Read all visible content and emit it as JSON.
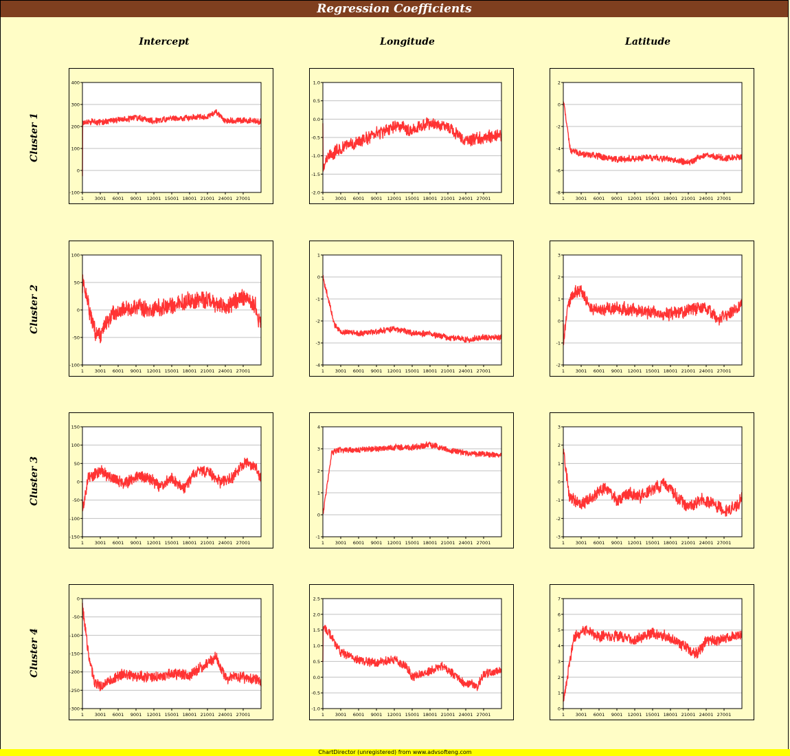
{
  "title": "Regression Coefficients",
  "columns": [
    "Intercept",
    "Longitude",
    "Latitude"
  ],
  "rows": [
    "Cluster 1",
    "Cluster 2",
    "Cluster 3",
    "Cluster 4"
  ],
  "footer": "ChartDirector (unregistered) from www.advsofteng.com",
  "line_color": "#ff3333",
  "chart_data": [
    {
      "type": "line",
      "row": "Cluster 1",
      "column": "Intercept",
      "ylim": [
        -100,
        400
      ],
      "yticks": [
        "400",
        "300",
        "200",
        "100",
        "0",
        "-100"
      ],
      "x_ticks": [
        "1",
        "3001",
        "6001",
        "9001",
        "12001",
        "15001",
        "18001",
        "21001",
        "24001",
        "27001"
      ],
      "xlim": [
        1,
        30000
      ],
      "start": -30,
      "level": [
        [
          0,
          220
        ],
        [
          3000,
          220
        ],
        [
          6000,
          230
        ],
        [
          9000,
          240
        ],
        [
          12000,
          225
        ],
        [
          15000,
          235
        ],
        [
          18000,
          240
        ],
        [
          21000,
          245
        ],
        [
          22500,
          265
        ],
        [
          24000,
          225
        ],
        [
          27000,
          225
        ],
        [
          30000,
          225
        ]
      ],
      "noise": [
        -12,
        12
      ]
    },
    {
      "type": "line",
      "row": "Cluster 1",
      "column": "Longitude",
      "ylim": [
        -2.0,
        1.0
      ],
      "yticks": [
        "1.0",
        "0.5",
        "0.0",
        "-0.5",
        "-1.0",
        "-1.5",
        "-2.0"
      ],
      "x_ticks": [
        "1",
        "3001",
        "6001",
        "9001",
        "12001",
        "15001",
        "18001",
        "21001",
        "24001",
        "27001"
      ],
      "xlim": [
        1,
        30000
      ],
      "start": 0.0,
      "level": [
        [
          0,
          -1.3
        ],
        [
          1000,
          -1.0
        ],
        [
          3000,
          -0.8
        ],
        [
          6000,
          -0.6
        ],
        [
          9000,
          -0.4
        ],
        [
          12000,
          -0.2
        ],
        [
          15000,
          -0.3
        ],
        [
          18000,
          -0.1
        ],
        [
          21000,
          -0.2
        ],
        [
          24000,
          -0.6
        ],
        [
          27000,
          -0.5
        ],
        [
          30000,
          -0.4
        ]
      ],
      "noise": [
        -0.15,
        0.15
      ]
    },
    {
      "type": "line",
      "row": "Cluster 1",
      "column": "Latitude",
      "ylim": [
        -8,
        2
      ],
      "yticks": [
        "2",
        "0",
        "-2",
        "-4",
        "-6",
        "-8"
      ],
      "x_ticks": [
        "1",
        "3001",
        "6001",
        "9001",
        "12001",
        "15001",
        "18001",
        "21001",
        "24001",
        "27001"
      ],
      "xlim": [
        1,
        30000
      ],
      "start": 0.5,
      "level": [
        [
          0,
          0.5
        ],
        [
          1200,
          -4.2
        ],
        [
          3000,
          -4.5
        ],
        [
          6000,
          -4.7
        ],
        [
          9000,
          -5.0
        ],
        [
          12000,
          -4.9
        ],
        [
          15000,
          -4.8
        ],
        [
          18000,
          -5.0
        ],
        [
          21000,
          -5.3
        ],
        [
          24000,
          -4.6
        ],
        [
          27000,
          -4.9
        ],
        [
          30000,
          -4.8
        ]
      ],
      "noise": [
        -0.25,
        0.25
      ]
    },
    {
      "type": "line",
      "row": "Cluster 2",
      "column": "Intercept",
      "ylim": [
        -100,
        100
      ],
      "yticks": [
        "100",
        "50",
        "0",
        "-50",
        "-100"
      ],
      "x_ticks": [
        "1",
        "3001",
        "6001",
        "9001",
        "12001",
        "15001",
        "18001",
        "21001",
        "24001",
        "27001"
      ],
      "xlim": [
        1,
        30000
      ],
      "start": 30,
      "level": [
        [
          0,
          55
        ],
        [
          2000,
          -40
        ],
        [
          3000,
          -50
        ],
        [
          4000,
          -20
        ],
        [
          6000,
          0
        ],
        [
          9000,
          5
        ],
        [
          12000,
          0
        ],
        [
          15000,
          10
        ],
        [
          18000,
          15
        ],
        [
          21000,
          20
        ],
        [
          24000,
          5
        ],
        [
          27000,
          25
        ],
        [
          29000,
          10
        ],
        [
          30000,
          -30
        ]
      ],
      "noise": [
        -14,
        14
      ]
    },
    {
      "type": "line",
      "row": "Cluster 2",
      "column": "Longitude",
      "ylim": [
        -4,
        1
      ],
      "yticks": [
        "1",
        "0",
        "-1",
        "-2",
        "-3",
        "-4"
      ],
      "x_ticks": [
        "1",
        "3001",
        "6001",
        "9001",
        "12001",
        "15001",
        "18001",
        "21001",
        "24001",
        "27001"
      ],
      "xlim": [
        1,
        30000
      ],
      "start": 0.0,
      "level": [
        [
          0,
          0.0
        ],
        [
          2000,
          -2.2
        ],
        [
          3000,
          -2.45
        ],
        [
          6000,
          -2.55
        ],
        [
          9000,
          -2.5
        ],
        [
          12000,
          -2.35
        ],
        [
          15000,
          -2.55
        ],
        [
          18000,
          -2.6
        ],
        [
          21000,
          -2.75
        ],
        [
          24000,
          -2.85
        ],
        [
          27000,
          -2.75
        ],
        [
          30000,
          -2.75
        ]
      ],
      "noise": [
        -0.12,
        0.12
      ]
    },
    {
      "type": "line",
      "row": "Cluster 2",
      "column": "Latitude",
      "ylim": [
        -2,
        3
      ],
      "yticks": [
        "3",
        "2",
        "1",
        "0",
        "-1",
        "-2"
      ],
      "x_ticks": [
        "1",
        "3001",
        "6001",
        "9001",
        "12001",
        "15001",
        "18001",
        "21001",
        "24001",
        "27001"
      ],
      "xlim": [
        1,
        30000
      ],
      "start": 0.0,
      "level": [
        [
          0,
          -1.0
        ],
        [
          700,
          0.5
        ],
        [
          1500,
          1.2
        ],
        [
          3000,
          1.4
        ],
        [
          4500,
          0.6
        ],
        [
          6000,
          0.5
        ],
        [
          9000,
          0.6
        ],
        [
          12000,
          0.5
        ],
        [
          15000,
          0.4
        ],
        [
          18000,
          0.3
        ],
        [
          21000,
          0.5
        ],
        [
          24000,
          0.6
        ],
        [
          26000,
          0.1
        ],
        [
          28000,
          0.3
        ],
        [
          30000,
          0.8
        ]
      ],
      "noise": [
        -0.25,
        0.25
      ]
    },
    {
      "type": "line",
      "row": "Cluster 3",
      "column": "Intercept",
      "ylim": [
        -150,
        150
      ],
      "yticks": [
        "150",
        "100",
        "50",
        "0",
        "-50",
        "-100",
        "-150"
      ],
      "x_ticks": [
        "1",
        "3001",
        "6001",
        "9001",
        "12001",
        "15001",
        "18001",
        "21001",
        "24001",
        "27001"
      ],
      "xlim": [
        1,
        30000
      ],
      "start": -60,
      "level": [
        [
          0,
          -80
        ],
        [
          1000,
          10
        ],
        [
          3000,
          30
        ],
        [
          5000,
          10
        ],
        [
          7000,
          -5
        ],
        [
          9000,
          15
        ],
        [
          11000,
          10
        ],
        [
          13000,
          -10
        ],
        [
          15000,
          10
        ],
        [
          17000,
          -20
        ],
        [
          19000,
          25
        ],
        [
          21000,
          30
        ],
        [
          23000,
          0
        ],
        [
          25000,
          10
        ],
        [
          27000,
          50
        ],
        [
          29000,
          40
        ],
        [
          30000,
          10
        ]
      ],
      "noise": [
        -14,
        14
      ]
    },
    {
      "type": "line",
      "row": "Cluster 3",
      "column": "Longitude",
      "ylim": [
        -1,
        4
      ],
      "yticks": [
        "4",
        "3",
        "2",
        "1",
        "0",
        "-1"
      ],
      "x_ticks": [
        "1",
        "3001",
        "6001",
        "9001",
        "12001",
        "15001",
        "18001",
        "21001",
        "24001",
        "27001"
      ],
      "xlim": [
        1,
        30000
      ],
      "start": 0.0,
      "level": [
        [
          0,
          0.0
        ],
        [
          1500,
          2.8
        ],
        [
          3000,
          2.95
        ],
        [
          6000,
          2.95
        ],
        [
          9000,
          3.0
        ],
        [
          12000,
          3.05
        ],
        [
          15000,
          3.05
        ],
        [
          18000,
          3.2
        ],
        [
          21000,
          2.95
        ],
        [
          24000,
          2.8
        ],
        [
          27000,
          2.75
        ],
        [
          30000,
          2.7
        ]
      ],
      "noise": [
        -0.12,
        0.12
      ]
    },
    {
      "type": "line",
      "row": "Cluster 3",
      "column": "Latitude",
      "ylim": [
        -3,
        3
      ],
      "yticks": [
        "3",
        "2",
        "1",
        "0",
        "-1",
        "-2",
        "-3"
      ],
      "x_ticks": [
        "1",
        "3001",
        "6001",
        "9001",
        "12001",
        "15001",
        "18001",
        "21001",
        "24001",
        "27001"
      ],
      "xlim": [
        1,
        30000
      ],
      "start": 1.5,
      "level": [
        [
          0,
          1.8
        ],
        [
          1000,
          -0.8
        ],
        [
          3000,
          -1.2
        ],
        [
          5000,
          -0.8
        ],
        [
          7000,
          -0.3
        ],
        [
          9000,
          -1.0
        ],
        [
          11000,
          -0.6
        ],
        [
          13000,
          -0.8
        ],
        [
          15000,
          -0.4
        ],
        [
          17000,
          -0.1
        ],
        [
          19000,
          -0.8
        ],
        [
          21000,
          -1.4
        ],
        [
          23000,
          -1.0
        ],
        [
          25000,
          -1.1
        ],
        [
          27000,
          -1.6
        ],
        [
          29000,
          -1.4
        ],
        [
          30000,
          -0.9
        ]
      ],
      "noise": [
        -0.3,
        0.3
      ]
    },
    {
      "type": "line",
      "row": "Cluster 4",
      "column": "Intercept",
      "ylim": [
        -300,
        0
      ],
      "yticks": [
        "0",
        "-50",
        "-100",
        "-150",
        "-200",
        "-250",
        "-300"
      ],
      "x_ticks": [
        "1",
        "3001",
        "6001",
        "9001",
        "12001",
        "15001",
        "18001",
        "21001",
        "24001",
        "27001"
      ],
      "xlim": [
        1,
        30000
      ],
      "start": -10,
      "level": [
        [
          0,
          -20
        ],
        [
          1200,
          -170
        ],
        [
          2000,
          -225
        ],
        [
          3000,
          -240
        ],
        [
          6000,
          -210
        ],
        [
          9000,
          -210
        ],
        [
          12000,
          -215
        ],
        [
          15000,
          -205
        ],
        [
          18000,
          -210
        ],
        [
          21000,
          -175
        ],
        [
          22500,
          -160
        ],
        [
          24000,
          -215
        ],
        [
          27000,
          -215
        ],
        [
          30000,
          -225
        ]
      ],
      "noise": [
        -13,
        13
      ]
    },
    {
      "type": "line",
      "row": "Cluster 4",
      "column": "Longitude",
      "ylim": [
        -1.0,
        2.5
      ],
      "yticks": [
        "2.5",
        "2.0",
        "1.5",
        "1.0",
        "0.5",
        "0.0",
        "-0.5",
        "-1.0"
      ],
      "x_ticks": [
        "1",
        "3001",
        "6001",
        "9001",
        "12001",
        "15001",
        "18001",
        "21001",
        "24001",
        "27001"
      ],
      "xlim": [
        1,
        30000
      ],
      "start": 0.4,
      "level": [
        [
          0,
          1.6
        ],
        [
          1000,
          1.4
        ],
        [
          3000,
          0.8
        ],
        [
          6000,
          0.55
        ],
        [
          9000,
          0.45
        ],
        [
          12000,
          0.55
        ],
        [
          14000,
          0.35
        ],
        [
          15000,
          0.0
        ],
        [
          18000,
          0.2
        ],
        [
          20000,
          0.35
        ],
        [
          22000,
          0.1
        ],
        [
          24000,
          -0.2
        ],
        [
          26000,
          -0.3
        ],
        [
          27000,
          0.1
        ],
        [
          30000,
          0.2
        ]
      ],
      "noise": [
        -0.12,
        0.12
      ]
    },
    {
      "type": "line",
      "row": "Cluster 4",
      "column": "Latitude",
      "ylim": [
        0,
        7
      ],
      "yticks": [
        "7",
        "6",
        "5",
        "4",
        "3",
        "2",
        "1",
        "0"
      ],
      "x_ticks": [
        "1",
        "3001",
        "6001",
        "9001",
        "12001",
        "15001",
        "18001",
        "21001",
        "24001",
        "27001"
      ],
      "xlim": [
        1,
        30000
      ],
      "start": 0.3,
      "level": [
        [
          0,
          0.5
        ],
        [
          1800,
          4.5
        ],
        [
          3500,
          5.0
        ],
        [
          6000,
          4.6
        ],
        [
          9000,
          4.6
        ],
        [
          12000,
          4.4
        ],
        [
          15000,
          4.8
        ],
        [
          18000,
          4.5
        ],
        [
          21000,
          3.8
        ],
        [
          22500,
          3.5
        ],
        [
          24000,
          4.3
        ],
        [
          27000,
          4.4
        ],
        [
          30000,
          4.7
        ]
      ],
      "noise": [
        -0.3,
        0.3
      ]
    }
  ]
}
